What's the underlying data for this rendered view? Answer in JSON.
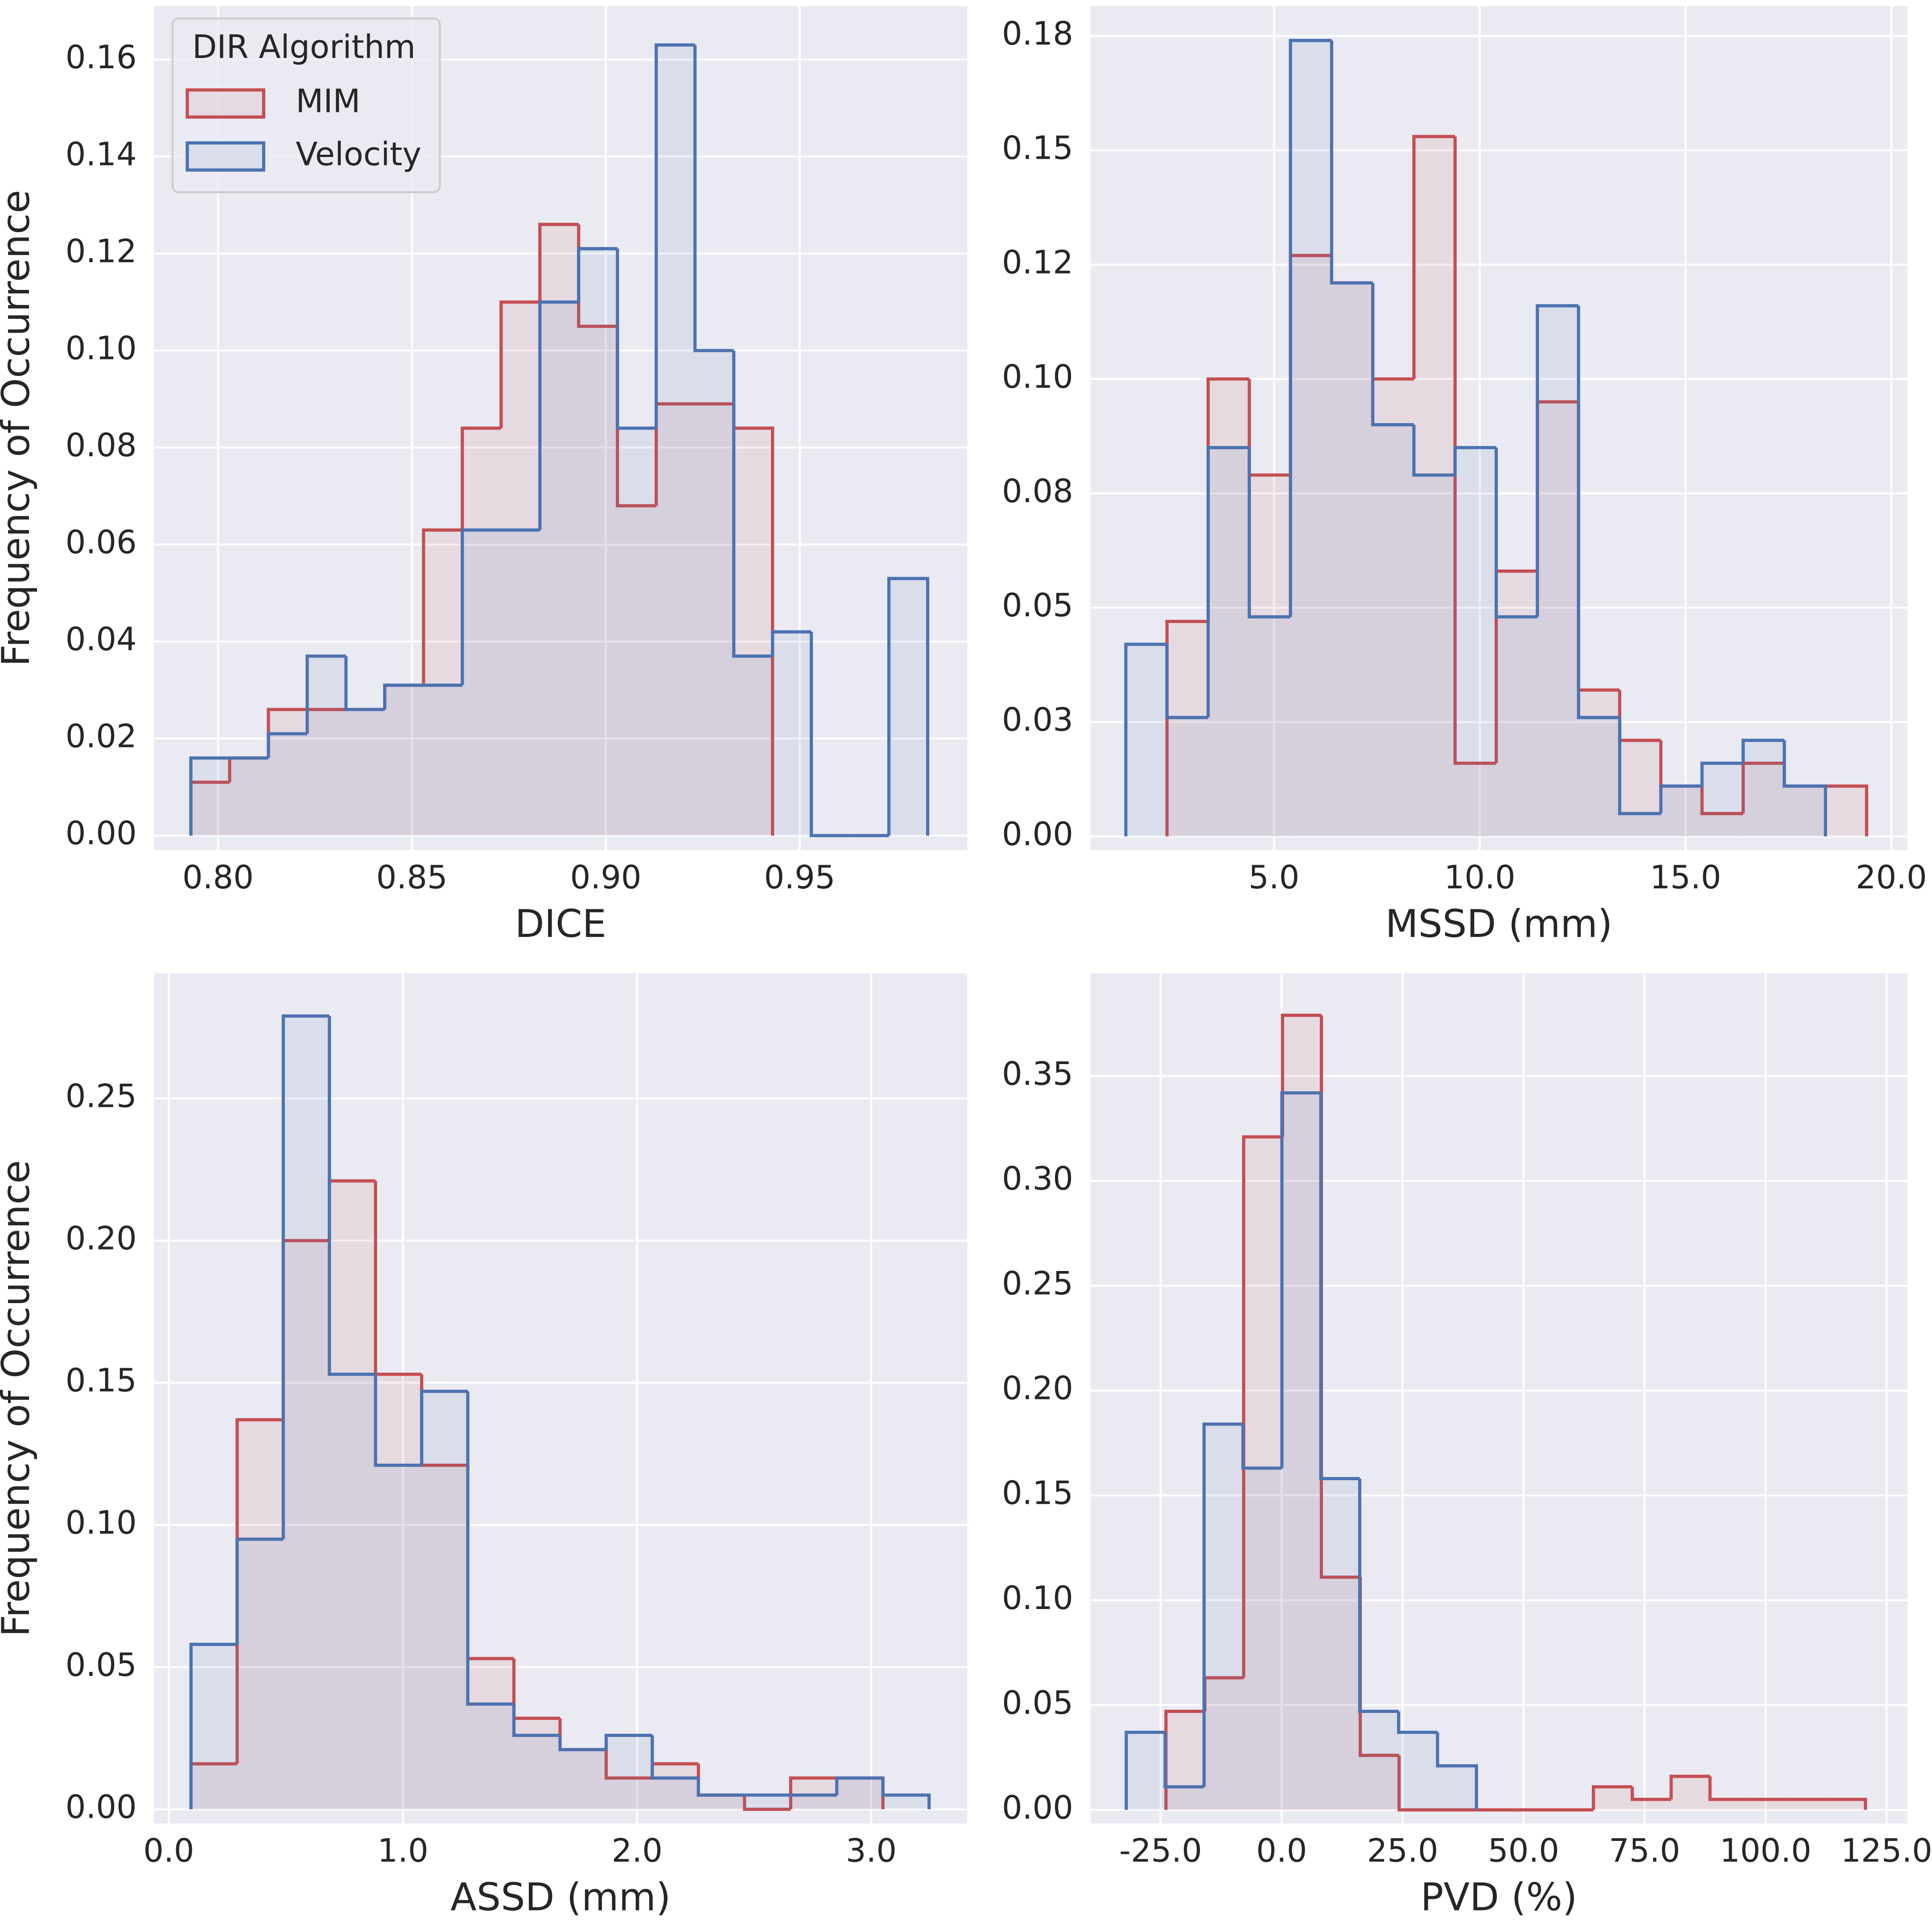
{
  "chart_data": [
    {
      "type": "histogram",
      "xlabel": "DICE",
      "ylabel": "Frequency of Occurrence",
      "xlim": [
        0.7835,
        0.9932
      ],
      "ylim": [
        -0.003,
        0.171
      ],
      "xticks": [
        {
          "value": 0.8,
          "label": "0.80"
        },
        0.85,
        {
          "value": 0.9,
          "label": "0.90"
        },
        0.95
      ],
      "yticks": [
        {
          "value": 0,
          "label": "0.00"
        },
        0.02,
        0.04,
        0.06,
        0.08,
        {
          "value": 0.1,
          "label": "0.10"
        },
        0.12,
        0.14,
        0.16
      ],
      "grid": true,
      "legend": "upper left",
      "legend_title": "DIR Algorithm",
      "series": [
        {
          "name": "MIM",
          "color": "#c44e52",
          "bins": [
            0.793,
            0.803,
            0.813,
            0.823,
            0.833,
            0.843,
            0.853,
            0.863,
            0.873,
            0.883,
            0.893,
            0.903,
            0.913,
            0.923,
            0.933,
            0.943
          ],
          "values": [
            0.011,
            0.016,
            0.026,
            0.026,
            0.026,
            0.031,
            0.063,
            0.084,
            0.11,
            0.126,
            0.105,
            0.068,
            0.089,
            0.089,
            0.084
          ]
        },
        {
          "name": "Velocity",
          "color": "#4c72b0",
          "bins": [
            0.793,
            0.803,
            0.813,
            0.823,
            0.833,
            0.843,
            0.853,
            0.863,
            0.873,
            0.883,
            0.893,
            0.903,
            0.913,
            0.923,
            0.933,
            0.943,
            0.953,
            0.963,
            0.973,
            0.983
          ],
          "values": [
            0.016,
            0.016,
            0.021,
            0.037,
            0.026,
            0.031,
            0.031,
            0.063,
            0.063,
            0.11,
            0.121,
            0.084,
            0.163,
            0.1,
            0.037,
            0.042,
            0,
            0,
            0.053
          ]
        }
      ]
    },
    {
      "type": "histogram",
      "xlabel": "MSSD (mm)",
      "xlim": [
        0.54,
        20.39
      ],
      "ylim": [
        -0.003,
        0.1815
      ],
      "xticks": [
        {
          "value": 5,
          "label": "5.0"
        },
        {
          "value": 10,
          "label": "10.0"
        },
        {
          "value": 15,
          "label": "15.0"
        },
        {
          "value": 20,
          "label": "20.0"
        }
      ],
      "yticks": [
        {
          "value": 0,
          "label": "0.00"
        },
        {
          "value": 0.025,
          "label": "0.03"
        },
        0.05,
        {
          "value": 0.075,
          "label": "0.08"
        },
        {
          "value": 0.1,
          "label": "0.10"
        },
        {
          "value": 0.125,
          "label": "0.12"
        },
        0.15,
        {
          "value": 0.175,
          "label": "0.18"
        }
      ],
      "grid": true,
      "series": [
        {
          "color": "#c44e52",
          "bins": [
            2.4,
            3.4,
            4.4,
            5.4,
            6.4,
            7.4,
            8.4,
            9.4,
            10.4,
            11.4,
            12.4,
            13.4,
            14.4,
            15.4,
            16.4,
            17.4,
            18.4,
            19.4
          ],
          "values": [
            0.047,
            0.1,
            0.079,
            0.127,
            0.121,
            0.1,
            0.153,
            0.016,
            0.058,
            0.095,
            0.032,
            0.021,
            0.011,
            0.005,
            0.016,
            0.011,
            0.011
          ]
        },
        {
          "color": "#4c72b0",
          "bins": [
            1.4,
            2.4,
            3.4,
            4.4,
            5.4,
            6.4,
            7.4,
            8.4,
            9.4,
            10.4,
            11.4,
            12.4,
            13.4,
            14.4,
            15.4,
            16.4,
            17.4,
            18.4
          ],
          "values": [
            0.042,
            0.026,
            0.085,
            0.048,
            0.174,
            0.121,
            0.09,
            0.079,
            0.085,
            0.048,
            0.116,
            0.026,
            0.005,
            0.011,
            0.016,
            0.021,
            0.011
          ]
        }
      ]
    },
    {
      "type": "histogram",
      "xlabel": "ASSD (mm)",
      "ylabel": "Frequency of Occurrence",
      "xlim": [
        -0.063,
        3.41
      ],
      "ylim": [
        -0.005,
        0.294
      ],
      "xticks": [
        {
          "value": 0,
          "label": "0.0"
        },
        {
          "value": 1,
          "label": "1.0"
        },
        {
          "value": 2,
          "label": "2.0"
        },
        {
          "value": 3,
          "label": "3.0"
        }
      ],
      "yticks": [
        {
          "value": 0,
          "label": "0.00"
        },
        0.05,
        {
          "value": 0.1,
          "label": "0.10"
        },
        0.15,
        {
          "value": 0.2,
          "label": "0.20"
        },
        0.25
      ],
      "grid": true,
      "series": [
        {
          "color": "#c44e52",
          "bins": [
            0.095,
            0.292,
            0.489,
            0.686,
            0.883,
            1.08,
            1.277,
            1.474,
            1.671,
            1.868,
            2.065,
            2.262,
            2.459,
            2.656,
            2.853,
            3.05
          ],
          "values": [
            0.016,
            0.137,
            0.2,
            0.221,
            0.153,
            0.121,
            0.053,
            0.032,
            0.021,
            0.011,
            0.016,
            0.005,
            0,
            0.011,
            0.011
          ]
        },
        {
          "color": "#4c72b0",
          "bins": [
            0.095,
            0.292,
            0.489,
            0.686,
            0.883,
            1.08,
            1.277,
            1.474,
            1.671,
            1.868,
            2.065,
            2.262,
            2.459,
            2.656,
            2.853,
            3.05,
            3.247
          ],
          "values": [
            0.058,
            0.095,
            0.279,
            0.153,
            0.121,
            0.147,
            0.037,
            0.026,
            0.021,
            0.026,
            0.011,
            0.005,
            0.005,
            0.005,
            0.011,
            0.005
          ]
        }
      ]
    },
    {
      "type": "histogram",
      "xlabel": "PVD (%)",
      "xlim": [
        -39.5,
        129.3
      ],
      "ylim": [
        -0.0065,
        0.399
      ],
      "xticks": [
        {
          "value": -25,
          "label": "-25.0"
        },
        {
          "value": 0,
          "label": "0.0"
        },
        {
          "value": 25,
          "label": "25.0"
        },
        {
          "value": 50,
          "label": "50.0"
        },
        {
          "value": 75,
          "label": "75.0"
        },
        {
          "value": 100,
          "label": "100.0"
        },
        {
          "value": 125,
          "label": "125.0"
        }
      ],
      "yticks": [
        {
          "value": 0,
          "label": "0.00"
        },
        0.05,
        {
          "value": 0.1,
          "label": "0.10"
        },
        0.15,
        {
          "value": 0.2,
          "label": "0.20"
        },
        0.25,
        {
          "value": 0.3,
          "label": "0.30"
        },
        0.35
      ],
      "grid": true,
      "series": [
        {
          "color": "#c44e52",
          "bins": [
            -23.9,
            -15.87,
            -7.84,
            0.19,
            8.22,
            16.25,
            24.28,
            32.31,
            40.34,
            48.37,
            56.4,
            64.43,
            72.46,
            80.49,
            88.52,
            96.55,
            104.58,
            112.61,
            120.64
          ],
          "values": [
            0.047,
            0.063,
            0.321,
            0.379,
            0.111,
            0.026,
            0,
            0,
            0,
            0,
            0,
            0.011,
            0.005,
            0.016,
            0.005,
            0.005,
            0.005,
            0.005
          ]
        },
        {
          "color": "#4c72b0",
          "bins": [
            -32.1,
            -24.06,
            -16.02,
            -7.98,
            0.06,
            8.1,
            16.14,
            24.18,
            32.22,
            40.26
          ],
          "values": [
            0.037,
            0.011,
            0.184,
            0.163,
            0.342,
            0.158,
            0.047,
            0.037,
            0.021
          ]
        }
      ]
    }
  ]
}
